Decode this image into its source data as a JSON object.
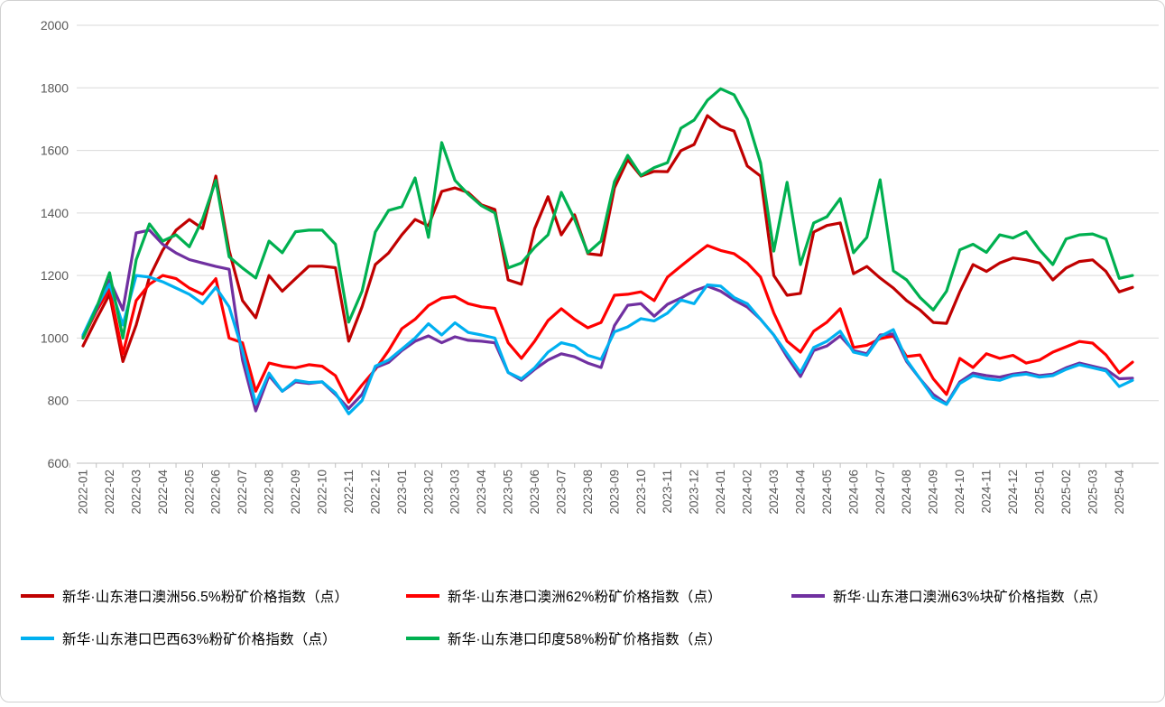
{
  "chart_data": {
    "type": "line",
    "title": "",
    "xlabel": "",
    "ylabel": "",
    "ylim": [
      600,
      2000
    ],
    "y_ticks": [
      600,
      800,
      1000,
      1200,
      1400,
      1600,
      1800,
      2000
    ],
    "grid": "horizontal",
    "legend_position": "bottom",
    "points_per_month": 2,
    "x_labels": [
      "2022-01",
      "2022-02",
      "2022-03",
      "2022-04",
      "2022-05",
      "2022-06",
      "2022-07",
      "2022-08",
      "2022-09",
      "2022-10",
      "2022-11",
      "2022-12",
      "2023-01",
      "2023-02",
      "2023-03",
      "2023-04",
      "2023-05",
      "2023-06",
      "2023-07",
      "2023-08",
      "2023-09",
      "2023-10",
      "2023-11",
      "2023-12",
      "2024-01",
      "2024-02",
      "2024-03",
      "2024-04",
      "2024-05",
      "2024-06",
      "2024-07",
      "2024-08",
      "2024-09",
      "2024-10",
      "2024-11",
      "2024-12",
      "2025-01",
      "2025-02",
      "2025-03",
      "2025-04"
    ],
    "series": [
      {
        "key": "au565-fines",
        "name": "新华·山东港口澳洲56.5%粉矿价格指数（点）",
        "color": "#C00000",
        "values": [
          975,
          1060,
          1140,
          925,
          1042,
          1195,
          1281,
          1345,
          1379,
          1350,
          1518,
          1280,
          1120,
          1065,
          1200,
          1150,
          1190,
          1230,
          1230,
          1225,
          990,
          1100,
          1235,
          1272,
          1330,
          1379,
          1359,
          1469,
          1480,
          1465,
          1426,
          1411,
          1186,
          1172,
          1350,
          1452,
          1330,
          1394,
          1270,
          1265,
          1480,
          1570,
          1518,
          1533,
          1532,
          1599,
          1619,
          1711,
          1677,
          1662,
          1550,
          1518,
          1200,
          1137,
          1143,
          1339,
          1360,
          1368,
          1206,
          1229,
          1192,
          1160,
          1120,
          1090,
          1050,
          1047,
          1148,
          1235,
          1213,
          1240,
          1256,
          1250,
          1240,
          1186,
          1224,
          1245,
          1250,
          1213,
          1148,
          1162
        ]
      },
      {
        "key": "au62-fines",
        "name": "新华·山东港口澳洲62%粉矿价格指数（点）",
        "color": "#FF0000",
        "values": [
          1000,
          1085,
          1157,
          950,
          1120,
          1172,
          1200,
          1190,
          1160,
          1140,
          1190,
          1000,
          985,
          830,
          920,
          910,
          905,
          915,
          910,
          880,
          795,
          850,
          900,
          960,
          1030,
          1060,
          1104,
          1128,
          1133,
          1110,
          1100,
          1095,
          985,
          935,
          990,
          1056,
          1094,
          1060,
          1033,
          1050,
          1137,
          1140,
          1148,
          1120,
          1195,
          1230,
          1264,
          1296,
          1280,
          1270,
          1240,
          1195,
          1080,
          990,
          955,
          1022,
          1051,
          1094,
          970,
          977,
          998,
          1007,
          941,
          946,
          870,
          820,
          935,
          906,
          950,
          935,
          945,
          920,
          930,
          955,
          972,
          989,
          984,
          946,
          889,
          923
        ]
      },
      {
        "key": "au63-lump",
        "name": "新华·山东港口澳洲63%块矿价格指数（点）",
        "color": "#7030A0",
        "values": [
          1005,
          1090,
          1186,
          1090,
          1336,
          1345,
          1300,
          1272,
          1251,
          1240,
          1229,
          1220,
          930,
          767,
          880,
          830,
          860,
          855,
          860,
          820,
          775,
          820,
          905,
          922,
          960,
          990,
          1007,
          985,
          1004,
          993,
          990,
          985,
          890,
          865,
          900,
          930,
          950,
          940,
          920,
          906,
          1040,
          1105,
          1110,
          1070,
          1108,
          1128,
          1151,
          1166,
          1150,
          1122,
          1099,
          1060,
          1010,
          940,
          877,
          960,
          975,
          1007,
          960,
          950,
          1010,
          1013,
          925,
          870,
          820,
          790,
          860,
          888,
          880,
          875,
          885,
          890,
          880,
          885,
          905,
          920,
          910,
          900,
          870,
          872
        ]
      },
      {
        "key": "br63-fines",
        "name": "新华·山东港口巴西63%粉矿价格指数（点）",
        "color": "#00B0F0",
        "values": [
          1010,
          1100,
          1172,
          1042,
          1200,
          1195,
          1180,
          1160,
          1140,
          1110,
          1162,
          1100,
          960,
          790,
          888,
          830,
          865,
          858,
          860,
          825,
          758,
          800,
          910,
          930,
          965,
          1000,
          1046,
          1010,
          1049,
          1018,
          1010,
          1000,
          890,
          870,
          905,
          955,
          985,
          975,
          945,
          932,
          1020,
          1036,
          1062,
          1055,
          1080,
          1122,
          1110,
          1170,
          1166,
          1130,
          1110,
          1060,
          1010,
          950,
          890,
          970,
          990,
          1022,
          955,
          945,
          1005,
          1027,
          930,
          870,
          810,
          788,
          855,
          880,
          870,
          865,
          880,
          885,
          875,
          880,
          900,
          915,
          905,
          895,
          845,
          865
        ]
      },
      {
        "key": "in58-fines",
        "name": "新华·山东港口印度58%粉矿价格指数（点）",
        "color": "#00B050",
        "values": [
          1000,
          1095,
          1209,
          1000,
          1250,
          1365,
          1310,
          1330,
          1292,
          1380,
          1504,
          1260,
          1224,
          1192,
          1310,
          1273,
          1340,
          1345,
          1345,
          1300,
          1051,
          1150,
          1339,
          1408,
          1420,
          1512,
          1322,
          1625,
          1504,
          1460,
          1423,
          1400,
          1224,
          1240,
          1290,
          1330,
          1466,
          1380,
          1273,
          1310,
          1500,
          1584,
          1520,
          1545,
          1561,
          1671,
          1697,
          1760,
          1797,
          1778,
          1700,
          1560,
          1278,
          1498,
          1235,
          1368,
          1388,
          1446,
          1273,
          1322,
          1506,
          1215,
          1186,
          1130,
          1090,
          1150,
          1282,
          1300,
          1274,
          1330,
          1320,
          1340,
          1282,
          1235,
          1317,
          1330,
          1333,
          1317,
          1191,
          1200
        ]
      }
    ]
  }
}
